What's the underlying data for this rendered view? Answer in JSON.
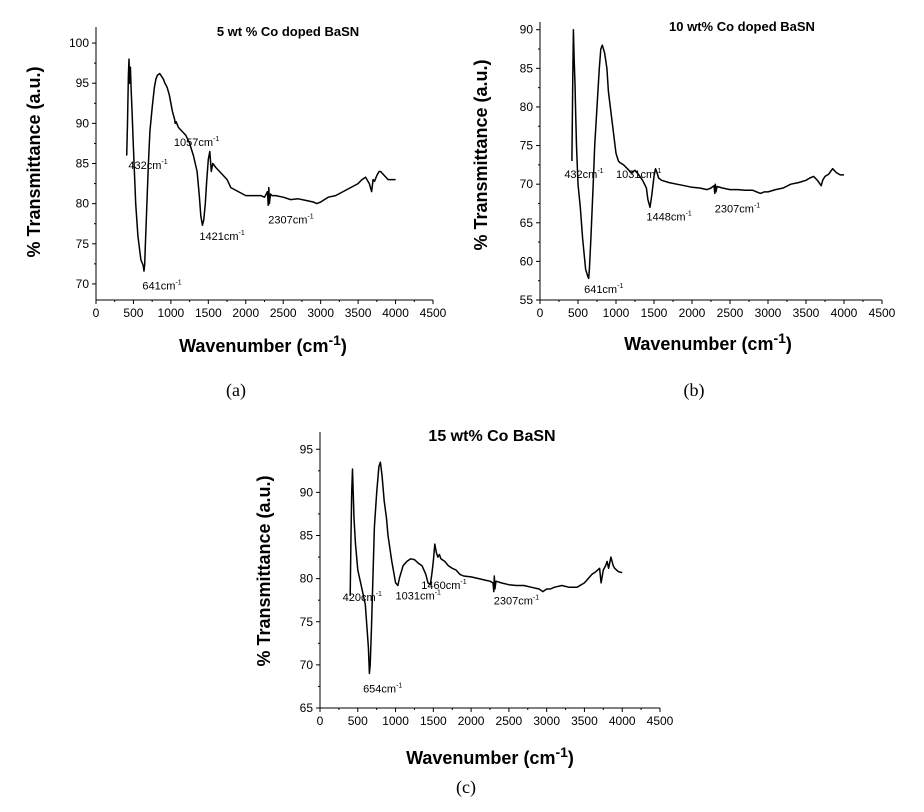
{
  "chart_data": [
    {
      "type": "line",
      "panel_label": "(a)",
      "title": "5 wt % Co doped BaSN",
      "xlabel": "Wavenumber (cm",
      "xlabel_sup": "-1",
      "xlabel_close": ")",
      "ylabel": "% Transmittance (a.u.)",
      "xlim": [
        0,
        4500
      ],
      "ylim": [
        68,
        102
      ],
      "xticks": [
        0,
        500,
        1000,
        1500,
        2000,
        2500,
        3000,
        3500,
        4000,
        4500
      ],
      "yticks": [
        70,
        75,
        80,
        85,
        90,
        95,
        100
      ],
      "series": [
        {
          "name": "5 wt % Co doped BaSN",
          "x": [
            410,
            420,
            432,
            440,
            450,
            460,
            470,
            480,
            500,
            530,
            560,
            600,
            630,
            641,
            650,
            660,
            680,
            700,
            720,
            750,
            780,
            800,
            820,
            850,
            880,
            900,
            920,
            950,
            980,
            1000,
            1020,
            1050,
            1057,
            1070,
            1100,
            1150,
            1200,
            1250,
            1300,
            1350,
            1380,
            1400,
            1421,
            1440,
            1460,
            1480,
            1500,
            1520,
            1540,
            1560,
            1600,
            1650,
            1700,
            1750,
            1800,
            1900,
            2000,
            2100,
            2200,
            2250,
            2290,
            2300,
            2307,
            2315,
            2330,
            2350,
            2400,
            2500,
            2600,
            2700,
            2800,
            2900,
            2950,
            3000,
            3050,
            3100,
            3200,
            3300,
            3400,
            3500,
            3550,
            3600,
            3650,
            3680,
            3700,
            3720,
            3750,
            3780,
            3800,
            3850,
            3900,
            3950,
            4000
          ],
          "y": [
            86,
            90,
            96,
            98,
            95,
            97,
            94,
            92,
            87,
            80,
            76,
            73,
            72.3,
            71.6,
            72.5,
            75,
            80,
            85,
            89,
            92,
            94.5,
            95.5,
            96,
            96.2,
            95.8,
            95.5,
            95,
            94.5,
            93.5,
            92.5,
            91.5,
            90.5,
            90,
            90.2,
            89.5,
            89,
            88.5,
            87.5,
            86,
            84,
            81,
            78.5,
            77.3,
            78,
            80,
            83,
            85.5,
            86.5,
            84,
            85,
            84.5,
            84,
            83.5,
            83,
            82,
            81.5,
            81,
            81,
            81,
            80.8,
            81.5,
            79.8,
            82,
            80,
            81.2,
            81,
            81,
            80.8,
            80.5,
            80.6,
            80.4,
            80.2,
            80,
            80.2,
            80.5,
            80.8,
            81,
            81.5,
            82,
            82.5,
            83,
            83.3,
            82.5,
            81.5,
            83,
            82.8,
            83.5,
            84,
            84,
            83.5,
            83,
            83,
            83
          ]
        }
      ],
      "annotations": [
        {
          "base": "432cm",
          "sup": "-1",
          "x": 432,
          "y": 84.3
        },
        {
          "base": "1057cm",
          "sup": "-1",
          "x": 1040,
          "y": 87.2
        },
        {
          "base": "641cm",
          "sup": "-1",
          "x": 620,
          "y": 69.3
        },
        {
          "base": "1421cm",
          "sup": "-1",
          "x": 1380,
          "y": 75.5
        },
        {
          "base": "2307cm",
          "sup": "-1",
          "x": 2300,
          "y": 77.5
        }
      ]
    },
    {
      "type": "line",
      "panel_label": "(b)",
      "title": "10 wt% Co doped BaSN",
      "xlabel": "Wavenumber (cm",
      "xlabel_sup": "-1",
      "xlabel_close": ")",
      "ylabel": "% Transmittance (a.u.)",
      "xlim": [
        0,
        4500
      ],
      "ylim": [
        55,
        91
      ],
      "xticks": [
        0,
        500,
        1000,
        1500,
        2000,
        2500,
        3000,
        3500,
        4000,
        4500
      ],
      "yticks": [
        55,
        60,
        65,
        70,
        75,
        80,
        85,
        90
      ],
      "series": [
        {
          "name": "10 wt% Co doped BaSN",
          "x": [
            420,
            432,
            440,
            450,
            460,
            470,
            480,
            500,
            530,
            560,
            600,
            630,
            641,
            650,
            670,
            700,
            720,
            750,
            780,
            800,
            820,
            850,
            880,
            900,
            950,
            1000,
            1031,
            1050,
            1100,
            1150,
            1200,
            1250,
            1300,
            1350,
            1400,
            1420,
            1448,
            1470,
            1500,
            1520,
            1540,
            1560,
            1600,
            1700,
            1800,
            1900,
            2000,
            2100,
            2200,
            2250,
            2290,
            2300,
            2307,
            2315,
            2330,
            2400,
            2500,
            2600,
            2700,
            2800,
            2900,
            2950,
            3000,
            3100,
            3200,
            3300,
            3400,
            3500,
            3550,
            3600,
            3650,
            3700,
            3720,
            3750,
            3800,
            3850,
            3900,
            3950,
            4000
          ],
          "y": [
            73,
            84,
            90,
            86,
            83,
            79,
            75,
            70,
            67,
            63,
            59,
            58,
            57.8,
            59,
            63,
            70,
            75,
            80,
            85,
            87.5,
            88,
            87,
            85,
            82,
            78,
            74,
            73,
            72.8,
            72.5,
            72,
            71.5,
            71.8,
            71.2,
            70.5,
            69.5,
            68,
            67,
            68.5,
            71,
            72,
            71.5,
            70.8,
            70.5,
            70.2,
            70,
            69.8,
            69.6,
            69.5,
            69.3,
            69.5,
            69.8,
            68.8,
            70,
            69,
            69.7,
            69.5,
            69.3,
            69.3,
            69.2,
            69.2,
            68.8,
            69,
            69,
            69.3,
            69.5,
            70,
            70.2,
            70.5,
            70.8,
            71,
            70.5,
            69.8,
            70.5,
            71,
            71.3,
            72,
            71.5,
            71.2,
            71.2
          ]
        }
      ],
      "annotations": [
        {
          "base": "432cm",
          "sup": "-1",
          "x": 320,
          "y": 70.8
        },
        {
          "base": "1031cm",
          "sup": "-1",
          "x": 1000,
          "y": 70.8
        },
        {
          "base": "641cm",
          "sup": "-1",
          "x": 580,
          "y": 55.9
        },
        {
          "base": "1448cm",
          "sup": "-1",
          "x": 1400,
          "y": 65.3
        },
        {
          "base": "2307cm",
          "sup": "-1",
          "x": 2300,
          "y": 66.3
        }
      ]
    },
    {
      "type": "line",
      "panel_label": "(c)",
      "title": "15 wt% Co BaSN",
      "xlabel": "Wavenumber (cm",
      "xlabel_sup": "-1",
      "xlabel_close": ")",
      "ylabel": "% Transmittance (a.u.)",
      "xlim": [
        0,
        4500
      ],
      "ylim": [
        65,
        97
      ],
      "xticks": [
        0,
        500,
        1000,
        1500,
        2000,
        2500,
        3000,
        3500,
        4000,
        4500
      ],
      "yticks": [
        65,
        70,
        75,
        80,
        85,
        90,
        95
      ],
      "series": [
        {
          "name": "15 wt% Co BaSN",
          "x": [
            400,
            410,
            420,
            430,
            440,
            450,
            470,
            500,
            550,
            600,
            640,
            654,
            665,
            680,
            700,
            720,
            750,
            780,
            800,
            820,
            850,
            880,
            900,
            950,
            1000,
            1031,
            1050,
            1100,
            1150,
            1200,
            1250,
            1300,
            1350,
            1400,
            1430,
            1460,
            1480,
            1500,
            1520,
            1540,
            1560,
            1580,
            1600,
            1650,
            1700,
            1750,
            1800,
            1850,
            1900,
            2000,
            2100,
            2200,
            2250,
            2290,
            2300,
            2307,
            2315,
            2330,
            2400,
            2500,
            2600,
            2700,
            2800,
            2900,
            2950,
            3000,
            3050,
            3100,
            3200,
            3300,
            3400,
            3500,
            3550,
            3600,
            3650,
            3700,
            3720,
            3750,
            3780,
            3800,
            3820,
            3850,
            3880,
            3900,
            3950,
            4000
          ],
          "y": [
            78,
            85,
            90,
            92.7,
            90,
            87,
            84,
            81,
            79,
            77,
            72,
            69,
            70,
            74,
            80,
            86,
            90,
            93,
            93.5,
            92,
            89,
            87,
            85,
            82,
            79.5,
            79.2,
            80,
            81.5,
            82,
            82.3,
            82.2,
            81.8,
            81.5,
            80.5,
            79.5,
            79.3,
            80.5,
            82,
            84,
            83,
            82.5,
            82.8,
            82.3,
            82,
            81.5,
            81.2,
            81,
            80.5,
            80.3,
            80.2,
            80,
            79.8,
            79.7,
            79.5,
            78.5,
            80.3,
            78.8,
            79.7,
            79.5,
            79.3,
            79.2,
            79.2,
            79,
            78.8,
            78.5,
            78.8,
            78.8,
            79,
            79.2,
            79,
            79,
            79.5,
            80,
            80.5,
            80.8,
            81.2,
            79.5,
            81,
            81.5,
            82,
            81.2,
            82.5,
            81.5,
            81.2,
            80.8,
            80.7
          ]
        }
      ],
      "annotations": [
        {
          "base": "420cm",
          "sup": "-1",
          "x": 300,
          "y": 77.4
        },
        {
          "base": "1031cm",
          "sup": "-1",
          "x": 1000,
          "y": 77.6
        },
        {
          "base": "1460cm",
          "sup": "-1",
          "x": 1340,
          "y": 78.8
        },
        {
          "base": "654cm",
          "sup": "-1",
          "x": 570,
          "y": 66.8
        },
        {
          "base": "2307cm",
          "sup": "-1",
          "x": 2300,
          "y": 77
        }
      ]
    }
  ]
}
